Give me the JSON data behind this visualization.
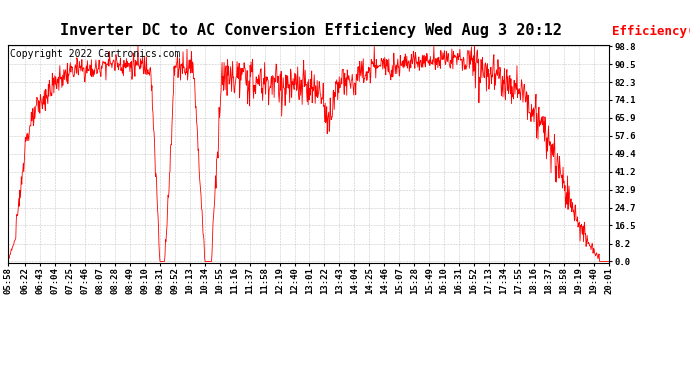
{
  "title": "Inverter DC to AC Conversion Efficiency Wed Aug 3 20:12",
  "copyright": "Copyright 2022 Cartronics.com",
  "ylabel": "Efficiency(%)",
  "line_color": "#ff0000",
  "bg_color": "#ffffff",
  "grid_color": "#b0b0b0",
  "yticks": [
    0.0,
    8.2,
    16.5,
    24.7,
    32.9,
    41.2,
    49.4,
    57.6,
    65.9,
    74.1,
    82.3,
    90.5,
    98.8
  ],
  "ymin": 0.0,
  "ymax": 98.8,
  "xtick_labels": [
    "05:58",
    "06:22",
    "06:43",
    "07:04",
    "07:25",
    "07:46",
    "08:07",
    "08:28",
    "08:49",
    "09:10",
    "09:31",
    "09:52",
    "10:13",
    "10:34",
    "10:55",
    "11:16",
    "11:37",
    "11:58",
    "12:19",
    "12:40",
    "13:01",
    "13:22",
    "13:43",
    "14:04",
    "14:25",
    "14:46",
    "15:07",
    "15:28",
    "15:49",
    "16:10",
    "16:31",
    "16:52",
    "17:13",
    "17:34",
    "17:55",
    "18:16",
    "18:37",
    "18:58",
    "19:19",
    "19:40",
    "20:01"
  ],
  "title_fontsize": 11,
  "copyright_fontsize": 7,
  "ylabel_fontsize": 9,
  "tick_fontsize": 6.5
}
